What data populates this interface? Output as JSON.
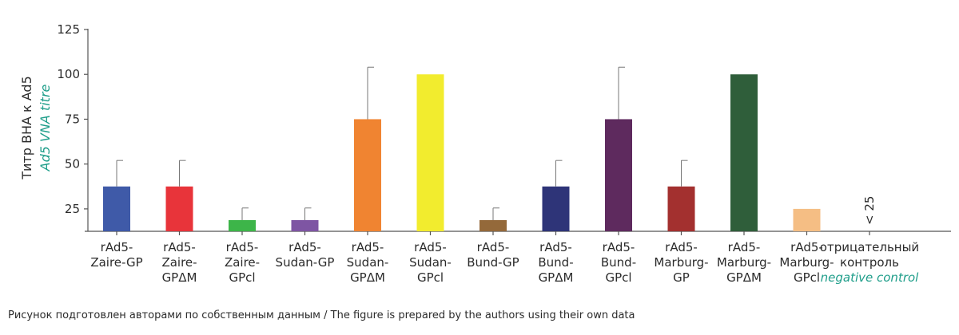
{
  "chart_data": {
    "type": "bar",
    "ylabel": "Титр ВНА к Ad5",
    "ylabel_en": "Ad5 VNA titre",
    "xlabel": "",
    "ylim": [
      12.5,
      125
    ],
    "yticks": [
      25,
      50,
      75,
      100,
      125
    ],
    "grid": false,
    "categories": [
      {
        "lines": [
          "rAd5-",
          "Zaire-GP"
        ],
        "value": 37.5,
        "err": 52,
        "color": "#3f5aa8"
      },
      {
        "lines": [
          "rAd5-",
          "Zaire-",
          "GPΔM"
        ],
        "value": 37.5,
        "err": 52,
        "color": "#e8343a"
      },
      {
        "lines": [
          "rAd5-",
          "Zaire-",
          "GPcl"
        ],
        "value": 18.75,
        "err": 25.5,
        "color": "#3db549"
      },
      {
        "lines": [
          "rAd5-",
          "Sudan-GP"
        ],
        "value": 18.75,
        "err": 25.5,
        "color": "#7e55a3"
      },
      {
        "lines": [
          "rAd5-",
          "Sudan-",
          "GPΔM"
        ],
        "value": 75,
        "err": 104,
        "color": "#f08431"
      },
      {
        "lines": [
          "rAd5-",
          "Sudan-",
          "GPcl"
        ],
        "value": 100,
        "err": null,
        "color": "#f2ec2e"
      },
      {
        "lines": [
          "rAd5-",
          "Bund-GP"
        ],
        "value": 18.75,
        "err": 25.5,
        "color": "#94693a"
      },
      {
        "lines": [
          "rAd5-",
          "Bund-",
          "GPΔM"
        ],
        "value": 37.5,
        "err": 52,
        "color": "#2e3478"
      },
      {
        "lines": [
          "rAd5-",
          "Bund-",
          "GPcl"
        ],
        "value": 75,
        "err": 104,
        "color": "#5e2a5e"
      },
      {
        "lines": [
          "rAd5-",
          "Marburg-",
          "GP"
        ],
        "value": 37.5,
        "err": 52,
        "color": "#a3302f"
      },
      {
        "lines": [
          "rAd5-",
          "Marburg-",
          "GPΔM"
        ],
        "value": 100,
        "err": null,
        "color": "#2f5e3a"
      },
      {
        "lines": [
          "rAd5-",
          "Marburg-",
          "GPcl"
        ],
        "value": 25,
        "err": null,
        "color": "#f5be84"
      },
      {
        "lines": [
          "отрицательный",
          "контроль"
        ],
        "lines_en": [
          "negative control"
        ],
        "value": null,
        "annotation": "< 25",
        "color": null
      }
    ]
  },
  "footnote": "Рисунок подготовлен авторами по собственным данным / The figure is prepared by the authors using their own data"
}
